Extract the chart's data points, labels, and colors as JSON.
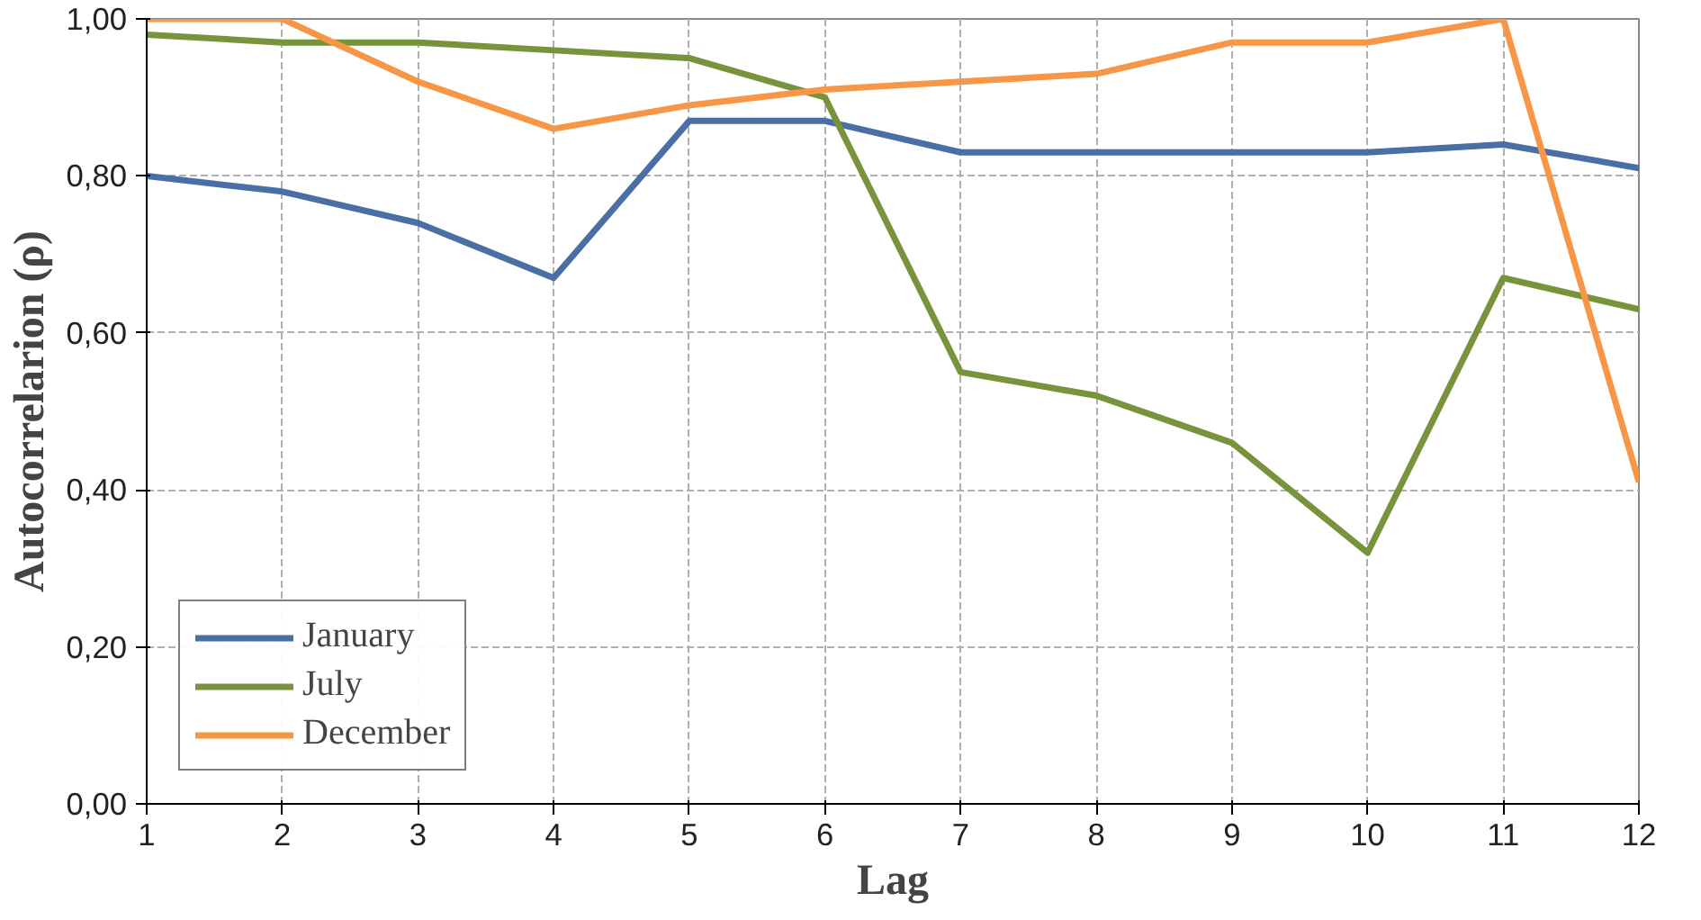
{
  "chart_data": {
    "type": "line",
    "xlabel": "Lag",
    "ylabel": "Autocorrelarion (ρ)",
    "x": [
      1,
      2,
      3,
      4,
      5,
      6,
      7,
      8,
      9,
      10,
      11,
      12
    ],
    "series": [
      {
        "name": "January",
        "color": "#4a6fa5",
        "values": [
          0.8,
          0.78,
          0.74,
          0.67,
          0.87,
          0.87,
          0.83,
          0.83,
          0.83,
          0.83,
          0.84,
          0.81
        ]
      },
      {
        "name": "July",
        "color": "#77933c",
        "values": [
          0.98,
          0.97,
          0.97,
          0.96,
          0.95,
          0.9,
          0.55,
          0.52,
          0.46,
          0.32,
          0.67,
          0.63
        ]
      },
      {
        "name": "December",
        "color": "#f79646",
        "values": [
          1.0,
          1.0,
          0.92,
          0.86,
          0.89,
          0.91,
          0.92,
          0.93,
          0.97,
          0.97,
          1.0,
          0.41
        ]
      }
    ],
    "xlim": [
      1,
      12
    ],
    "xticks": [
      1,
      2,
      3,
      4,
      5,
      6,
      7,
      8,
      9,
      10,
      11,
      12
    ],
    "ylim": [
      0,
      1
    ],
    "yticks": [
      {
        "value": 0,
        "label": "0,00"
      },
      {
        "value": 0.2,
        "label": "0,20"
      },
      {
        "value": 0.4,
        "label": "0,40"
      },
      {
        "value": 0.6,
        "label": "0,60"
      },
      {
        "value": 0.8,
        "label": "0,80"
      },
      {
        "value": 1,
        "label": "1,00"
      }
    ],
    "grid": true,
    "legend": "bottom left",
    "marker": "none",
    "line_style": "solid"
  }
}
